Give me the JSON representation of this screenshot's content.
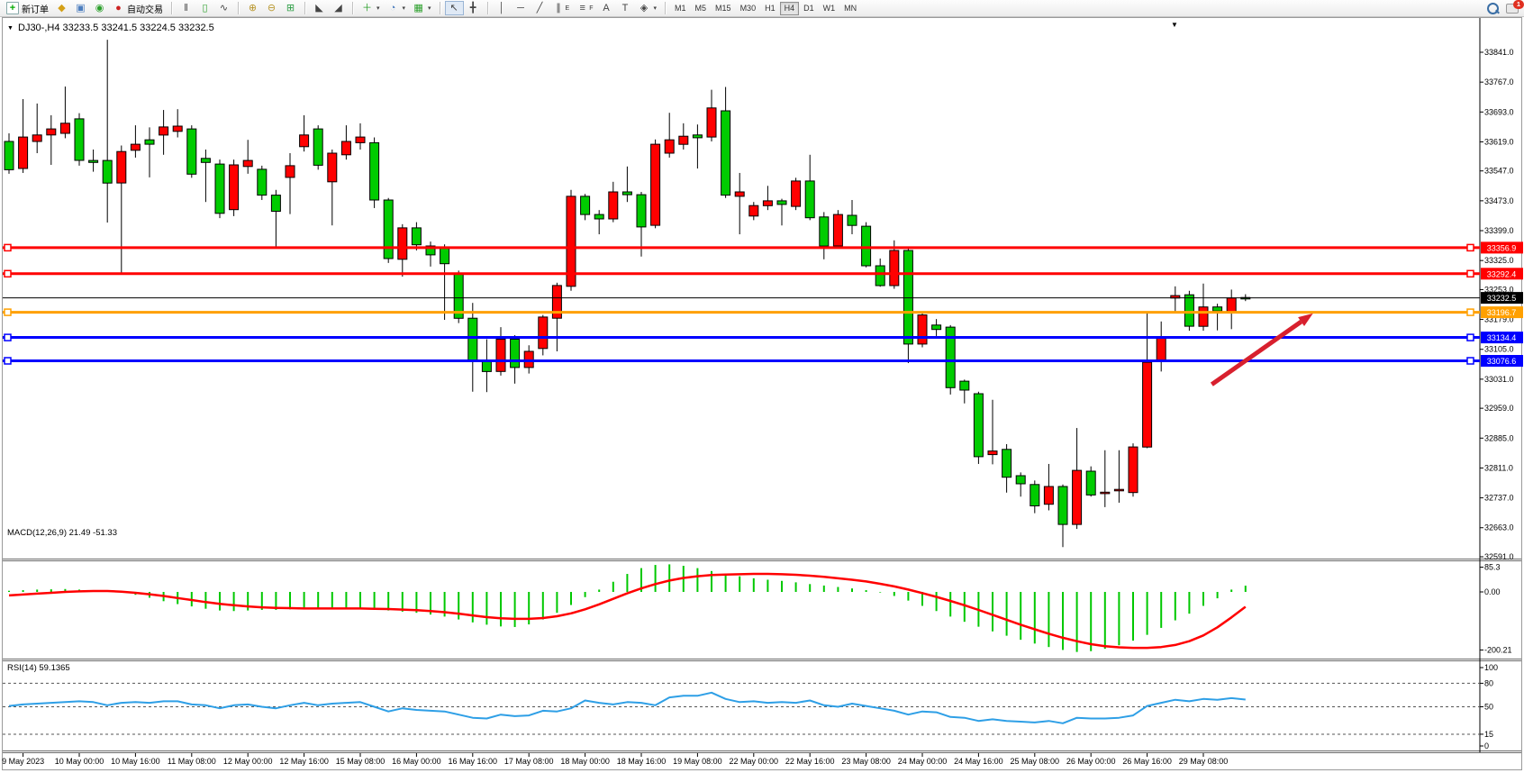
{
  "toolbar": {
    "new_order_label": "新订单",
    "autotrade_label": "自动交易",
    "timeframes": [
      "M1",
      "M5",
      "M15",
      "M30",
      "H1",
      "H4",
      "D1",
      "W1",
      "MN"
    ],
    "active_timeframe": "H4",
    "notification_count": "1"
  },
  "icons": {
    "new_order": "+",
    "profiles": "◆",
    "market_watch": "▣",
    "data_window": "◉",
    "auto_trading": "●",
    "bars_chart": "‖",
    "candle_chart": "▯",
    "line_chart": "∿",
    "zoom_in": "⊕",
    "zoom_out": "⊖",
    "tile_windows": "⊞",
    "chart_shift": "◣",
    "auto_scroll": "◢",
    "indicators": "＋",
    "periods": "◔",
    "templates": "▦",
    "cursor": "↖",
    "crosshair": "╋",
    "vline": "│",
    "hline": "─",
    "trendline": "╱",
    "channel": "∥",
    "channel_sub": "E",
    "fibo": "≡",
    "fibo_sub": "F",
    "text_tool": "A",
    "label_tool": "T",
    "shapes": "◈",
    "caret": "▾",
    "title_collapse": "▼",
    "chart_shift_marker": "▼"
  },
  "chart_header": {
    "symbol_period": "DJ30-,H4",
    "ohlc": "33233.5 33241.5 33224.5 33232.5"
  },
  "chart_data": {
    "type": "candlestick",
    "symbol": "DJ30-",
    "timeframe": "H4",
    "current": {
      "open": 33233.5,
      "high": 33241.5,
      "low": 33224.5,
      "close": 33232.5
    },
    "price_axis_labels": [
      33841.0,
      33767.0,
      33693.0,
      33619.0,
      33547.0,
      33473.0,
      33399.0,
      33325.0,
      33253.0,
      33179.0,
      33105.0,
      33031.0,
      32959.0,
      32885.0,
      32811.0,
      32737.0,
      32663.0,
      32591.0
    ],
    "ylim": [
      32591.0,
      33841.0
    ],
    "time_labels": [
      {
        "t": "9 May 2023",
        "i": 1
      },
      {
        "t": "10 May 00:00",
        "i": 5
      },
      {
        "t": "10 May 16:00",
        "i": 9
      },
      {
        "t": "11 May 08:00",
        "i": 13
      },
      {
        "t": "12 May 00:00",
        "i": 17
      },
      {
        "t": "12 May 16:00",
        "i": 21
      },
      {
        "t": "15 May 08:00",
        "i": 25
      },
      {
        "t": "16 May 00:00",
        "i": 29
      },
      {
        "t": "16 May 16:00",
        "i": 33
      },
      {
        "t": "17 May 08:00",
        "i": 37
      },
      {
        "t": "18 May 00:00",
        "i": 41
      },
      {
        "t": "18 May 16:00",
        "i": 45
      },
      {
        "t": "19 May 08:00",
        "i": 49
      },
      {
        "t": "22 May 00:00",
        "i": 53
      },
      {
        "t": "22 May 16:00",
        "i": 57
      },
      {
        "t": "23 May 08:00",
        "i": 61
      },
      {
        "t": "24 May 00:00",
        "i": 65
      },
      {
        "t": "24 May 16:00",
        "i": 69
      },
      {
        "t": "25 May 08:00",
        "i": 73
      },
      {
        "t": "26 May 00:00",
        "i": 77
      },
      {
        "t": "26 May 16:00",
        "i": 81
      },
      {
        "t": "29 May 08:00",
        "i": 85
      }
    ],
    "candles": [
      [
        33620,
        33640,
        33540,
        33550
      ],
      [
        33553,
        33725,
        33542,
        33631
      ],
      [
        33620,
        33714,
        33591,
        33636
      ],
      [
        33636,
        33685,
        33562,
        33651
      ],
      [
        33640,
        33756,
        33628,
        33665
      ],
      [
        33676,
        33690,
        33560,
        33573
      ],
      [
        33573,
        33600,
        33545,
        33568
      ],
      [
        33573,
        33872,
        33419,
        33517
      ],
      [
        33517,
        33610,
        33294,
        33595
      ],
      [
        33598,
        33660,
        33580,
        33613
      ],
      [
        33624,
        33655,
        33531,
        33613
      ],
      [
        33636,
        33698,
        33587,
        33656
      ],
      [
        33645,
        33700,
        33630,
        33658
      ],
      [
        33651,
        33660,
        33530,
        33539
      ],
      [
        33578,
        33600,
        33470,
        33568
      ],
      [
        33564,
        33575,
        33430,
        33442
      ],
      [
        33451,
        33575,
        33435,
        33562
      ],
      [
        33558,
        33624,
        33540,
        33573
      ],
      [
        33551,
        33560,
        33475,
        33487
      ],
      [
        33487,
        33500,
        33360,
        33447
      ],
      [
        33531,
        33591,
        33440,
        33560
      ],
      [
        33607,
        33685,
        33595,
        33636
      ],
      [
        33651,
        33660,
        33550,
        33561
      ],
      [
        33520,
        33600,
        33412,
        33591
      ],
      [
        33587,
        33660,
        33575,
        33620
      ],
      [
        33617,
        33665,
        33600,
        33631
      ],
      [
        33617,
        33630,
        33455,
        33475
      ],
      [
        33475,
        33480,
        33319,
        33330
      ],
      [
        33328,
        33415,
        33285,
        33406
      ],
      [
        33406,
        33420,
        33350,
        33364
      ],
      [
        33361,
        33372,
        33310,
        33339
      ],
      [
        33357,
        33365,
        33178,
        33317
      ],
      [
        33294,
        33300,
        33170,
        33182
      ],
      [
        33182,
        33220,
        33000,
        33077
      ],
      [
        33077,
        33130,
        32999,
        33050
      ],
      [
        33050,
        33160,
        33040,
        33130
      ],
      [
        33130,
        33140,
        33020,
        33060
      ],
      [
        33060,
        33115,
        33045,
        33100
      ],
      [
        33107,
        33190,
        33090,
        33185
      ],
      [
        33182,
        33270,
        33100,
        33263
      ],
      [
        33261,
        33500,
        33250,
        33484
      ],
      [
        33484,
        33490,
        33425,
        33439
      ],
      [
        33439,
        33450,
        33390,
        33428
      ],
      [
        33428,
        33520,
        33420,
        33495
      ],
      [
        33495,
        33558,
        33470,
        33488
      ],
      [
        33488,
        33495,
        33335,
        33408
      ],
      [
        33412,
        33625,
        33405,
        33613
      ],
      [
        33591,
        33691,
        33580,
        33624
      ],
      [
        33613,
        33665,
        33600,
        33633
      ],
      [
        33636,
        33662,
        33553,
        33629
      ],
      [
        33631,
        33748,
        33620,
        33703
      ],
      [
        33696,
        33755,
        33480,
        33487
      ],
      [
        33484,
        33542,
        33390,
        33495
      ],
      [
        33435,
        33470,
        33425,
        33461
      ],
      [
        33461,
        33510,
        33450,
        33473
      ],
      [
        33473,
        33478,
        33412,
        33464
      ],
      [
        33459,
        33530,
        33450,
        33522
      ],
      [
        33522,
        33587,
        33425,
        33431
      ],
      [
        33433,
        33445,
        33328,
        33361
      ],
      [
        33361,
        33450,
        33355,
        33439
      ],
      [
        33437,
        33475,
        33390,
        33412
      ],
      [
        33410,
        33420,
        33308,
        33312
      ],
      [
        33312,
        33330,
        33260,
        33263
      ],
      [
        33263,
        33375,
        33255,
        33350
      ],
      [
        33350,
        33360,
        33071,
        33118
      ],
      [
        33118,
        33196,
        33110,
        33190
      ],
      [
        33165,
        33180,
        33138,
        33154
      ],
      [
        33160,
        33165,
        32993,
        33010
      ],
      [
        33026,
        33030,
        32971,
        33004
      ],
      [
        32995,
        33000,
        32821,
        32839
      ],
      [
        32844,
        32980,
        32820,
        32853
      ],
      [
        32857,
        32870,
        32750,
        32788
      ],
      [
        32792,
        32800,
        32740,
        32772
      ],
      [
        32770,
        32780,
        32699,
        32717
      ],
      [
        32721,
        32821,
        32706,
        32765
      ],
      [
        32765,
        32770,
        32615,
        32671
      ],
      [
        32671,
        32910,
        32660,
        32805
      ],
      [
        32803,
        32815,
        32740,
        32744
      ],
      [
        32748,
        32855,
        32714,
        32751
      ],
      [
        32755,
        32855,
        32725,
        32758
      ],
      [
        32750,
        32872,
        32740,
        32863
      ],
      [
        32863,
        33196,
        32860,
        33073
      ],
      [
        33076,
        33174,
        33050,
        33135
      ],
      [
        33232,
        33261,
        33196,
        33238
      ],
      [
        33240,
        33250,
        33151,
        33162
      ],
      [
        33162,
        33268,
        33151,
        33210
      ],
      [
        33210,
        33218,
        33152,
        33200
      ],
      [
        33198,
        33253,
        33155,
        33232
      ],
      [
        33233.5,
        33241.5,
        33224.5,
        33232.5
      ]
    ],
    "hlines": [
      {
        "price": 33356.9,
        "color": "#ff0000",
        "label": "33356.9",
        "name": "resistance-line-1"
      },
      {
        "price": 33292.4,
        "color": "#ff0000",
        "label": "33292.4",
        "name": "resistance-line-2"
      },
      {
        "price": 33196.7,
        "color": "#ffa000",
        "label": "33196.7",
        "name": "pivot-line"
      },
      {
        "price": 33134.4,
        "color": "#0000ff",
        "label": "33134.4",
        "name": "support-line-1"
      },
      {
        "price": 33076.6,
        "color": "#0000ff",
        "label": "33076.6",
        "name": "support-line-2"
      }
    ],
    "current_price_line": {
      "price": 33232.5,
      "label": "33232.5",
      "color": "#000000"
    },
    "macd": {
      "title": "MACD(12,26,9)",
      "value": "21.49",
      "signal_value": "-51.33",
      "axis_labels": [
        85.3,
        0.0,
        -200.21
      ],
      "histogram": [
        4,
        6,
        8,
        9,
        10,
        8,
        5,
        2,
        -3,
        -10,
        -20,
        -32,
        -42,
        -50,
        -58,
        -64,
        -66,
        -64,
        -62,
        -62,
        -60,
        -57,
        -55,
        -54,
        -55,
        -57,
        -60,
        -64,
        -68,
        -72,
        -78,
        -85,
        -95,
        -105,
        -113,
        -119,
        -121,
        -112,
        -95,
        -72,
        -45,
        -18,
        8,
        35,
        62,
        82,
        93,
        95,
        90,
        82,
        72,
        62,
        54,
        47,
        42,
        38,
        33,
        27,
        22,
        17,
        12,
        6,
        -2,
        -14,
        -30,
        -48,
        -66,
        -85,
        -103,
        -120,
        -136,
        -151,
        -165,
        -178,
        -190,
        -200,
        -207,
        -204,
        -196,
        -184,
        -168,
        -148,
        -124,
        -98,
        -75,
        -48,
        -22,
        8,
        21.5
      ],
      "signal": [
        -12,
        -9,
        -6,
        -3,
        0,
        2,
        3,
        3,
        1,
        -3,
        -8,
        -14,
        -21,
        -28,
        -35,
        -41,
        -46,
        -50,
        -53,
        -55,
        -56,
        -57,
        -57,
        -57,
        -57,
        -57,
        -58,
        -59,
        -61,
        -63,
        -66,
        -70,
        -75,
        -81,
        -87,
        -91,
        -93,
        -93,
        -90,
        -84,
        -74,
        -60,
        -43,
        -24,
        -5,
        12,
        27,
        39,
        48,
        54,
        58,
        60,
        61,
        62,
        62,
        61,
        59,
        56,
        52,
        47,
        42,
        36,
        28,
        19,
        8,
        -4,
        -17,
        -31,
        -46,
        -62,
        -79,
        -96,
        -113,
        -129,
        -144,
        -158,
        -170,
        -180,
        -187,
        -191,
        -193,
        -193,
        -190,
        -183,
        -170,
        -150,
        -122,
        -88,
        -51.3
      ]
    },
    "rsi": {
      "title": "RSI(14)",
      "value": "59.1365",
      "axis_labels": [
        100,
        80,
        50,
        15,
        0
      ],
      "levels": [
        80,
        50,
        15
      ],
      "values": [
        51,
        53,
        54,
        55,
        56,
        57,
        56,
        52,
        55,
        56,
        55,
        57,
        57,
        53,
        52,
        48,
        52,
        53,
        50,
        48,
        52,
        55,
        52,
        54,
        55,
        56,
        50,
        44,
        48,
        46,
        45,
        44,
        40,
        36,
        35,
        40,
        38,
        39,
        45,
        44,
        48,
        58,
        55,
        53,
        56,
        55,
        52,
        62,
        64,
        64,
        68,
        60,
        56,
        57,
        55,
        56,
        55,
        58,
        52,
        50,
        54,
        51,
        48,
        45,
        40,
        44,
        43,
        37,
        36,
        32,
        34,
        32,
        31,
        30,
        32,
        29,
        36,
        35,
        35,
        36,
        39,
        51,
        55,
        59,
        57,
        60,
        59,
        61,
        59.14
      ]
    },
    "annotation_arrow": {
      "from": {
        "index": 85.6,
        "price": 33018
      },
      "to": {
        "index": 92.8,
        "price": 33194
      },
      "color": "#d8202e"
    },
    "colors": {
      "bull": "#ff0000",
      "bear": "#00cc00",
      "wick": "#000000",
      "macd_hist": "#00c800",
      "macd_signal": "#ff0000",
      "rsi_line": "#2e9fe6",
      "background": "#ffffff",
      "axis_text": "#000000"
    }
  }
}
